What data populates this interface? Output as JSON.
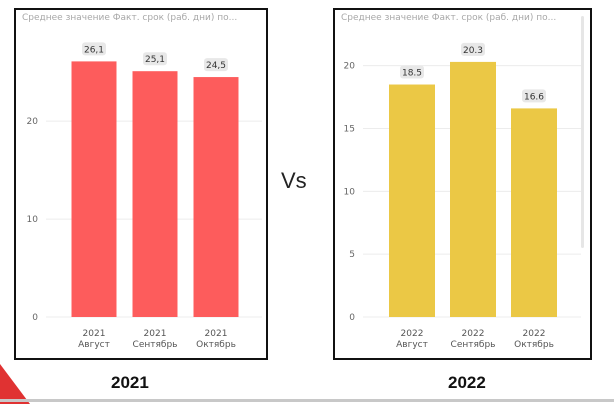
{
  "vs_label": "Vs",
  "left": {
    "title": "Среднее значение Факт. срок (раб. дни) по...",
    "footer_year": "2021",
    "bar_color": "#fd5c5c"
  },
  "right": {
    "title": "Среднее значение Факт. срок (раб. дни) по...",
    "footer_year": "2022",
    "bar_color": "#ebc845"
  },
  "chart_data": [
    {
      "type": "bar",
      "title": "Среднее значение Факт. срок (раб. дни) по...",
      "categories": [
        [
          "2021",
          "Август"
        ],
        [
          "2021",
          "Сентябрь"
        ],
        [
          "2021",
          "Октябрь"
        ]
      ],
      "values": [
        26.1,
        25.1,
        24.5
      ],
      "data_labels": [
        "26,1",
        "25,1",
        "24,5"
      ],
      "yticks": [
        0,
        10,
        20
      ],
      "ylim": [
        0,
        29
      ],
      "grid": true,
      "color": "#fd5c5c"
    },
    {
      "type": "bar",
      "title": "Среднее значение Факт. срок (раб. дни) по...",
      "categories": [
        [
          "2022",
          "Август"
        ],
        [
          "2022",
          "Сентябрь"
        ],
        [
          "2022",
          "Октябрь"
        ]
      ],
      "values": [
        18.5,
        20.3,
        16.6
      ],
      "data_labels": [
        "18.5",
        "20.3",
        "16.6"
      ],
      "yticks": [
        0,
        5,
        10,
        15,
        20
      ],
      "ylim": [
        0,
        22.6
      ],
      "grid": true,
      "color": "#ebc845"
    }
  ]
}
